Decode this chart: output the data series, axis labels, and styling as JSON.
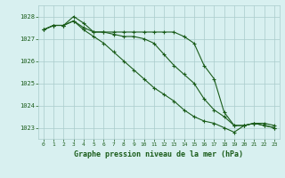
{
  "line1": [
    1027.4,
    1027.6,
    1027.6,
    1027.8,
    1027.5,
    1027.3,
    1027.3,
    1027.2,
    1027.1,
    1027.1,
    1027.0,
    1026.8,
    1026.3,
    1025.8,
    1025.4,
    1025.0,
    1024.3,
    1023.8,
    1023.5,
    1023.1,
    1023.1,
    1023.2,
    1023.1,
    1023.0
  ],
  "line2": [
    1027.4,
    1027.6,
    1027.6,
    1028.0,
    1027.7,
    1027.3,
    1027.3,
    1027.3,
    1027.3,
    1027.3,
    1027.3,
    1027.3,
    1027.3,
    1027.3,
    1027.1,
    1026.8,
    1025.8,
    1025.2,
    1023.7,
    1023.1,
    1023.1,
    1023.2,
    1023.2,
    1023.1
  ],
  "line3": [
    1027.4,
    1027.6,
    1027.6,
    1027.8,
    1027.4,
    1027.1,
    1026.8,
    1026.4,
    1026.0,
    1025.6,
    1025.2,
    1024.8,
    1024.5,
    1024.2,
    1023.8,
    1023.5,
    1023.3,
    1023.2,
    1023.0,
    1022.8,
    1023.1,
    1023.2,
    1023.1,
    1023.0
  ],
  "bg_color": "#d8f0f0",
  "grid_color": "#aacccc",
  "line_color": "#1a5c1a",
  "xlabel": "Graphe pression niveau de la mer (hPa)",
  "xlabel_color": "#1a5c1a",
  "ylim_min": 1022.5,
  "ylim_max": 1028.5,
  "yticks": [
    1023,
    1024,
    1025,
    1026,
    1027,
    1028
  ],
  "xticks": [
    0,
    1,
    2,
    3,
    4,
    5,
    6,
    7,
    8,
    9,
    10,
    11,
    12,
    13,
    14,
    15,
    16,
    17,
    18,
    19,
    20,
    21,
    22,
    23
  ]
}
